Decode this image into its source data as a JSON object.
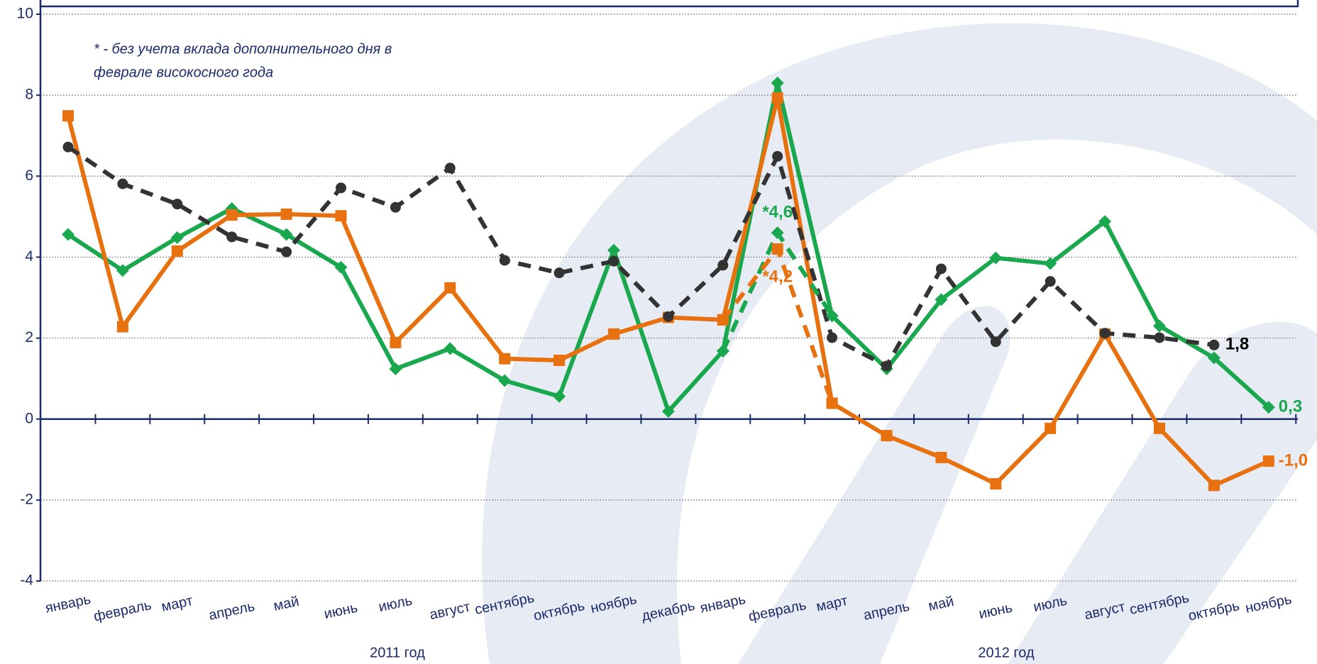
{
  "chart_data": {
    "type": "line",
    "annotation": [
      "* - без учета вклада дополнительного дня в",
      "феврале високосного года"
    ],
    "categories": [
      "январь",
      "февраль",
      "март",
      "апрель",
      "май",
      "июнь",
      "июль",
      "август",
      "сентябрь",
      "октябрь",
      "ноябрь",
      "декабрь",
      "январь",
      "февраль",
      "март",
      "апрель",
      "май",
      "июнь",
      "июль",
      "август",
      "сентябрь",
      "октябрь",
      "ноябрь"
    ],
    "group_labels": [
      "2011 год",
      "2012 год"
    ],
    "ylim": [
      -4,
      10
    ],
    "yticks": [
      -4,
      -2,
      0,
      2,
      4,
      6,
      8,
      10
    ],
    "grid": true,
    "series": [
      {
        "color": "#1aa84f",
        "marker": "diamond",
        "style": "solid",
        "values": [
          4.56,
          3.67,
          4.48,
          5.2,
          4.56,
          3.75,
          1.24,
          1.74,
          0.95,
          0.56,
          4.17,
          0.19,
          1.68,
          8.3,
          2.55,
          1.24,
          2.95,
          3.98,
          3.84,
          4.88,
          2.3,
          1.51,
          0.29
        ],
        "value_labels": [
          null,
          null,
          null,
          null,
          null,
          null,
          null,
          null,
          null,
          null,
          null,
          null,
          null,
          null,
          null,
          null,
          null,
          null,
          null,
          null,
          null,
          null,
          "0,3"
        ]
      },
      {
        "color": "#e8710f",
        "marker": "square",
        "style": "solid",
        "values": [
          7.49,
          2.28,
          4.15,
          5.04,
          5.06,
          5.02,
          1.89,
          3.24,
          1.49,
          1.45,
          2.1,
          2.51,
          2.45,
          7.93,
          0.39,
          -0.41,
          -0.95,
          -1.6,
          -0.23,
          2.1,
          -0.23,
          -1.64,
          -1.04
        ],
        "value_labels": [
          null,
          null,
          null,
          null,
          null,
          null,
          null,
          null,
          null,
          null,
          null,
          null,
          null,
          null,
          null,
          null,
          null,
          null,
          null,
          null,
          null,
          null,
          "-1,0"
        ]
      },
      {
        "color": "#333333",
        "marker": "circle",
        "style": "dashed",
        "values": [
          6.72,
          5.81,
          5.31,
          4.5,
          4.13,
          5.71,
          5.23,
          6.2,
          3.92,
          3.61,
          3.9,
          2.53,
          3.8,
          6.49,
          2.01,
          1.31,
          3.71,
          1.91,
          3.4,
          2.12,
          2.01,
          1.83,
          null
        ],
        "value_labels": [
          null,
          null,
          null,
          null,
          null,
          null,
          null,
          null,
          null,
          null,
          null,
          null,
          null,
          null,
          null,
          null,
          null,
          null,
          null,
          null,
          null,
          "1,8",
          null
        ]
      },
      {
        "color": "#1aa84f",
        "marker": "diamond",
        "style": "dashed",
        "values": [
          null,
          null,
          null,
          null,
          null,
          null,
          null,
          null,
          null,
          null,
          null,
          null,
          1.68,
          4.6,
          2.55,
          null,
          null,
          null,
          null,
          null,
          null,
          null,
          null
        ],
        "value_labels": [
          null,
          null,
          null,
          null,
          null,
          null,
          null,
          null,
          null,
          null,
          null,
          null,
          null,
          "*4,6",
          null,
          null,
          null,
          null,
          null,
          null,
          null,
          null,
          null
        ]
      },
      {
        "color": "#e8710f",
        "marker": "square",
        "style": "dashed",
        "values": [
          null,
          null,
          null,
          null,
          null,
          null,
          null,
          null,
          null,
          null,
          null,
          null,
          2.45,
          4.2,
          0.39,
          null,
          null,
          null,
          null,
          null,
          null,
          null,
          null
        ],
        "value_labels": [
          null,
          null,
          null,
          null,
          null,
          null,
          null,
          null,
          null,
          null,
          null,
          null,
          null,
          "*4,2",
          null,
          null,
          null,
          null,
          null,
          null,
          null,
          null,
          null
        ]
      }
    ]
  }
}
